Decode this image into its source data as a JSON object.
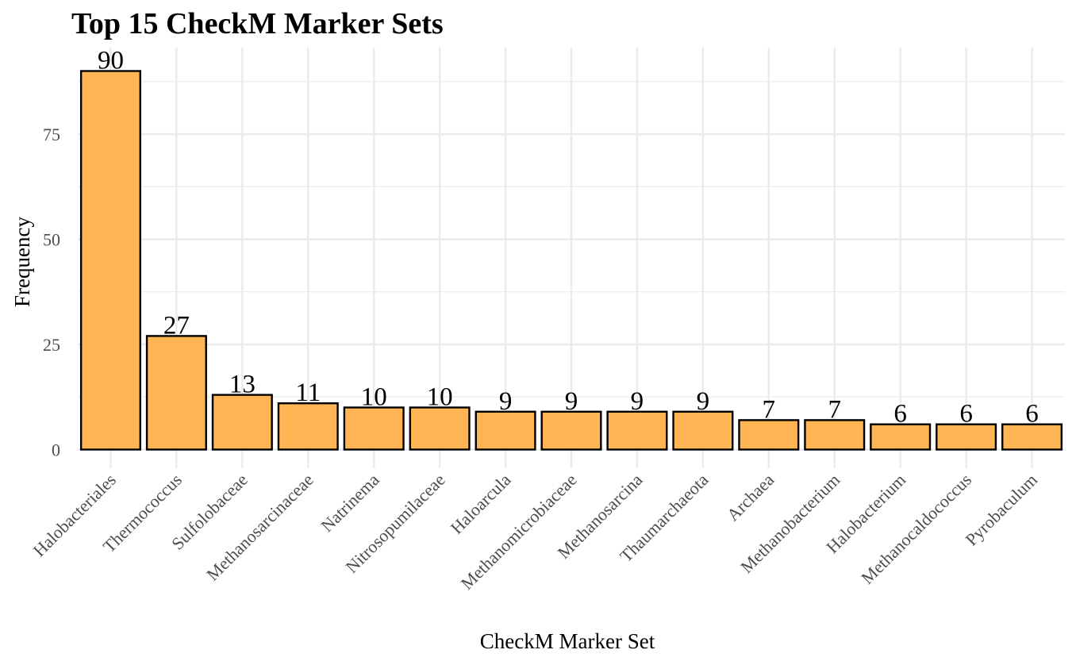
{
  "chart_data": {
    "type": "bar",
    "title": "Top 15 CheckM Marker Sets",
    "xlabel": "CheckM Marker Set",
    "ylabel": "Frequency",
    "categories": [
      "Halobacteriales",
      "Thermococcus",
      "Sulfolobaceae",
      "Methanosarcinaceae",
      "Natrinema",
      "Nitrosopumilaceae",
      "Haloarcula",
      "Methanomicrobiaceae",
      "Methanosarcina",
      "Thaumarchaeota",
      "Archaea",
      "Methanobacterium",
      "Halobacterium",
      "Methanocaldococcus",
      "Pyrobaculum"
    ],
    "values": [
      90,
      27,
      13,
      11,
      10,
      10,
      9,
      9,
      9,
      9,
      7,
      7,
      6,
      6,
      6
    ],
    "ylim": [
      -4.5,
      94.5
    ],
    "yticks": [
      0,
      25,
      50,
      75
    ],
    "grid": true,
    "legend": "none",
    "bar_fill": "#FFB553",
    "bar_stroke": "#000000",
    "grid_color": "#EBEBEB"
  }
}
